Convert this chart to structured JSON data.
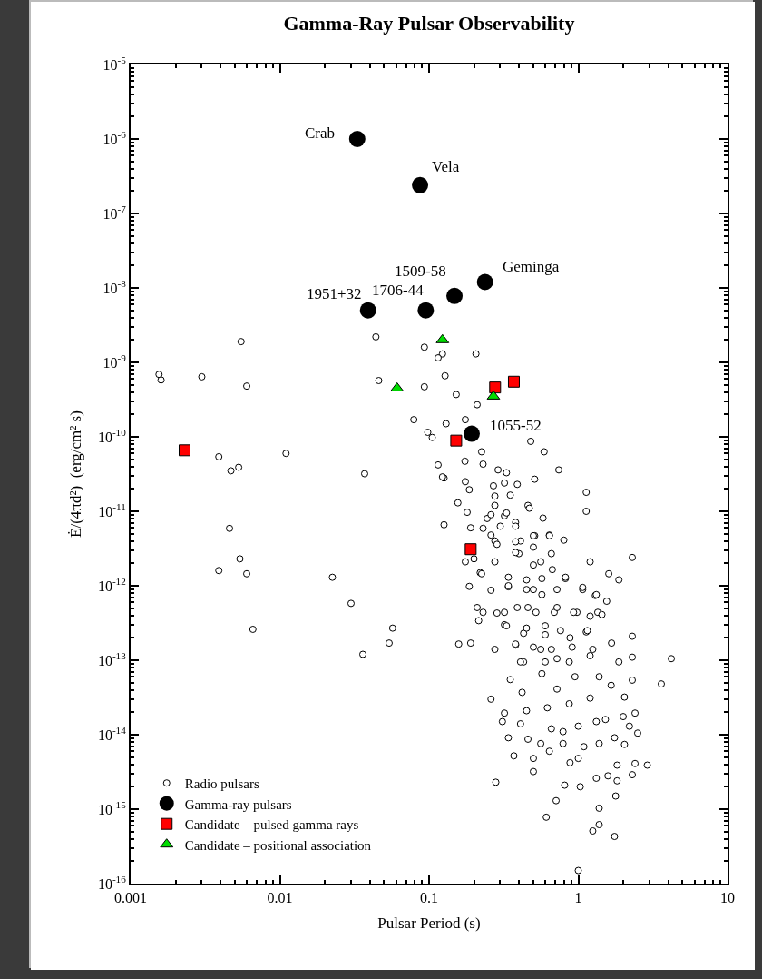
{
  "chart_data": {
    "type": "scatter",
    "title": "Gamma-Ray Pulsar Observability",
    "xlabel": "Pulsar Period (s)",
    "ylabel": "Ė/(4πd²)  (erg/cm² s)",
    "log": "xy",
    "grid": false,
    "legend": "bottom left",
    "xlim": [
      0.001,
      10
    ],
    "xticks": [
      0.001,
      0.01,
      0.1,
      1,
      10
    ],
    "ylim": [
      1e-16,
      1e-05
    ],
    "yticks": [
      {
        "value": 1e-16,
        "label": "10$^{-16}$"
      },
      {
        "value": 1e-15,
        "label": "10$^{-15}$"
      },
      {
        "value": 1e-14,
        "label": "10$^{-14}$"
      },
      {
        "value": 1e-13,
        "label": "10$^{-13}$"
      },
      {
        "value": 1e-12,
        "label": "10$^{-12}$"
      },
      {
        "value": 1e-11,
        "label": "10$^{-11}$"
      },
      {
        "value": 1e-10,
        "label": "10$^{-10}$"
      },
      {
        "value": 1e-09,
        "label": "10$^{-9}$"
      },
      {
        "value": 1e-08,
        "label": "10$^{-8}$"
      },
      {
        "value": 1e-07,
        "label": "10$^{-7}$"
      },
      {
        "value": 1e-06,
        "label": "10$^{-6}$"
      },
      {
        "value": 1e-05,
        "label": "10$^{-5}$"
      }
    ],
    "series": [
      {
        "name": "Radio pulsars",
        "color": "#ffffff",
        "marker": "circle",
        "x": [
          0.00155,
          0.0016,
          0.003,
          0.0055,
          0.006,
          0.044,
          0.046,
          0.093,
          0.123,
          0.115,
          0.206,
          0.128,
          0.093,
          0.152,
          0.21,
          0.079,
          0.13,
          0.175,
          0.098,
          0.0039,
          0.0047,
          0.0053,
          0.011,
          0.037,
          0.0046,
          0.0054,
          0.0039,
          0.006,
          0.0225,
          0.03,
          0.0066,
          0.057,
          0.054,
          0.036,
          0.105,
          0.48,
          0.59,
          0.74,
          0.51,
          1.13,
          1.13,
          0.8,
          2.3,
          1.2,
          1.6,
          1.87,
          2.3,
          2.3,
          4.2,
          1.87,
          0.115,
          0.126,
          0.156,
          0.126,
          0.174,
          0.225,
          0.23,
          0.175,
          0.186,
          0.18,
          0.19,
          0.175,
          0.186,
          0.158,
          0.19,
          0.276,
          0.29,
          0.33,
          0.32,
          0.39,
          0.27,
          0.35,
          0.46,
          0.58,
          0.276,
          0.245,
          0.32,
          0.38,
          0.64,
          0.51,
          0.41,
          0.276,
          0.66,
          0.56,
          0.4,
          0.276,
          0.22,
          0.34,
          0.5,
          0.82,
          1.07,
          1.3,
          1.55,
          1.35,
          0.98,
          0.69,
          0.46,
          0.32,
          0.23,
          0.215,
          0.32,
          0.43,
          0.6,
          0.88,
          1.13,
          1.67,
          0.38,
          0.56,
          0.72,
          1.2,
          0.43,
          3.6,
          0.26,
          0.35,
          0.42,
          0.57,
          0.72,
          0.95,
          1.38,
          1.66,
          2.3,
          2.04,
          1.2,
          0.87,
          0.62,
          0.45,
          0.32,
          0.31,
          0.41,
          0.66,
          1.0,
          1.32,
          1.52,
          2.0,
          2.4,
          2.2,
          2.5,
          0.79,
          0.34,
          0.46,
          0.56,
          0.79,
          1.09,
          1.38,
          1.75,
          2.04,
          0.37,
          0.64,
          0.5,
          0.88,
          1.0,
          1.82,
          2.4,
          2.9,
          2.3,
          1.58,
          1.32,
          1.82,
          0.5,
          0.28,
          0.81,
          1.03,
          1.78,
          0.71,
          1.38,
          0.61,
          1.38,
          1.25,
          1.75,
          1.0,
          1.07,
          1.32,
          0.72,
          0.57,
          0.45,
          0.34,
          0.26,
          0.21,
          0.285,
          0.39,
          0.52,
          0.72,
          0.93,
          1.2,
          1.44,
          0.33,
          0.45,
          0.6,
          0.76,
          1.15,
          0.38,
          0.5,
          0.66,
          0.91,
          1.25,
          0.41,
          0.6,
          0.87,
          0.123,
          0.276,
          0.47,
          0.26,
          0.33,
          0.23,
          0.3,
          0.38,
          0.5,
          0.64,
          0.26,
          0.285,
          0.38,
          0.5,
          0.2,
          0.38,
          0.5,
          0.67,
          0.225,
          0.34,
          0.45,
          0.57,
          0.82
        ],
        "values": [
          6.9e-10,
          5.8e-10,
          6.4e-10,
          1.9e-09,
          4.8e-10,
          2.2e-09,
          5.7e-10,
          1.6e-09,
          1.3e-09,
          1.15e-09,
          1.3e-09,
          6.6e-10,
          4.7e-10,
          3.7e-10,
          2.7e-10,
          1.7e-10,
          1.5e-10,
          1.7e-10,
          1.15e-10,
          5.4e-11,
          3.5e-11,
          3.9e-11,
          6e-11,
          3.2e-11,
          5.9e-12,
          2.3e-12,
          1.6e-12,
          1.45e-12,
          1.3e-12,
          5.8e-13,
          2.6e-13,
          2.7e-13,
          1.7e-13,
          1.2e-13,
          9.8e-11,
          8.7e-11,
          6.3e-11,
          3.6e-11,
          2.7e-11,
          1.8e-11,
          1e-11,
          4.1e-12,
          2.4e-12,
          2.1e-12,
          1.45e-12,
          1.2e-12,
          2.1e-13,
          1.1e-13,
          1.05e-13,
          9.5e-14,
          4.2e-11,
          2.8e-11,
          1.3e-11,
          6.6e-12,
          4.7e-11,
          6.3e-11,
          4.3e-11,
          2.5e-11,
          1.95e-11,
          9.7e-12,
          6e-12,
          2.1e-12,
          9.8e-13,
          1.65e-13,
          1.7e-13,
          1.4e-13,
          3.6e-11,
          3.3e-11,
          2.4e-11,
          2.3e-11,
          2.2e-11,
          1.65e-11,
          1.2e-11,
          8.1e-12,
          1.2e-11,
          8e-12,
          8.7e-12,
          7.1e-12,
          4.8e-12,
          4.7e-12,
          4e-12,
          4e-12,
          2.7e-12,
          2.1e-12,
          2.7e-12,
          2.1e-12,
          1.5e-12,
          9.7e-13,
          8.9e-13,
          1.25e-12,
          8.9e-13,
          7.4e-13,
          6.2e-13,
          4.4e-13,
          4.4e-13,
          4.4e-13,
          5.1e-13,
          4.4e-13,
          4.4e-13,
          3.4e-13,
          3e-13,
          2.3e-13,
          2.2e-13,
          2e-13,
          2.4e-13,
          1.7e-13,
          1.6e-13,
          1.4e-13,
          1.05e-13,
          1.15e-13,
          9.5e-14,
          4.8e-14,
          3e-14,
          5.5e-14,
          3.7e-14,
          6.6e-14,
          4.1e-14,
          6e-14,
          6e-14,
          4.6e-14,
          5.4e-14,
          3.2e-14,
          3.1e-14,
          2.6e-14,
          2.3e-14,
          2.1e-14,
          1.95e-14,
          1.5e-14,
          1.4e-14,
          1.2e-14,
          1.3e-14,
          1.5e-14,
          1.6e-14,
          1.75e-14,
          1.95e-14,
          1.3e-14,
          1.05e-14,
          1.1e-14,
          9.1e-15,
          8.7e-15,
          7.6e-15,
          7.6e-15,
          6.9e-15,
          7.6e-15,
          9.1e-15,
          7.4e-15,
          5.2e-15,
          6e-15,
          4.8e-15,
          4.2e-15,
          4.8e-15,
          3.9e-15,
          4.1e-15,
          3.9e-15,
          2.9e-15,
          2.8e-15,
          2.6e-15,
          2.4e-15,
          3.2e-15,
          2.3e-15,
          2.1e-15,
          2e-15,
          1.5e-15,
          1.3e-15,
          1.03e-15,
          7.8e-16,
          6.2e-16,
          5.1e-16,
          4.3e-16,
          1.5e-16,
          9.5e-13,
          7.6e-13,
          8.9e-13,
          7.6e-13,
          8.9e-13,
          1e-12,
          8.7e-13,
          5.1e-13,
          4.3e-13,
          5.1e-13,
          4.4e-13,
          5.1e-13,
          4.4e-13,
          3.9e-13,
          4.1e-13,
          2.9e-13,
          2.7e-13,
          2.9e-13,
          2.5e-13,
          2.5e-13,
          1.65e-13,
          1.5e-13,
          1.4e-13,
          1.5e-13,
          1.4e-13,
          9.5e-14,
          9.5e-14,
          9.5e-14,
          2.9e-11,
          1.6e-11,
          1.1e-11,
          9e-12,
          9.5e-12,
          5.9e-12,
          6.3e-12,
          6.3e-12,
          4.7e-12,
          4.7e-12,
          4.8e-12,
          3.6e-12,
          3.9e-12,
          3.3e-12,
          2.3e-12,
          2.8e-12,
          1.9e-12,
          1.65e-12,
          1.45e-12,
          1.3e-12,
          1.2e-12,
          1.25e-12,
          1.3e-12
        ]
      },
      {
        "name": "Gamma-ray pulsars",
        "color": "#000000",
        "marker": "circle",
        "x": [
          0.033,
          0.087,
          0.237,
          0.148,
          0.095,
          0.039,
          0.193
        ],
        "values": [
          1e-06,
          2.4e-07,
          1.2e-08,
          7.8e-09,
          5e-09,
          5e-09,
          1.1e-10
        ]
      },
      {
        "name": "Candidate – pulsed gamma rays",
        "color": "#ff0000",
        "marker": "square",
        "x": [
          0.0023,
          0.152,
          0.19,
          0.277,
          0.37
        ],
        "values": [
          6.6e-11,
          8.9e-11,
          3.1e-12,
          4.6e-10,
          5.5e-10
        ]
      },
      {
        "name": "Candidate – positional association",
        "color": "#00dd00",
        "marker": "triangle",
        "x": [
          0.123,
          0.061,
          0.27
        ],
        "values": [
          2e-09,
          4.5e-10,
          3.5e-10
        ]
      }
    ],
    "annotations": [
      {
        "text": "Crab",
        "x": 0.033,
        "y": 1e-06
      },
      {
        "text": "Vela",
        "x": 0.087,
        "y": 2.4e-07
      },
      {
        "text": "Geminga",
        "x": 0.237,
        "y": 1.2e-08
      },
      {
        "text": "1509-58",
        "x": 0.148,
        "y": 7.8e-09
      },
      {
        "text": "1706-44",
        "x": 0.095,
        "y": 5e-09
      },
      {
        "text": "1951+32",
        "x": 0.039,
        "y": 5e-09
      },
      {
        "text": "1055-52",
        "x": 0.193,
        "y": 1.1e-10
      }
    ]
  }
}
